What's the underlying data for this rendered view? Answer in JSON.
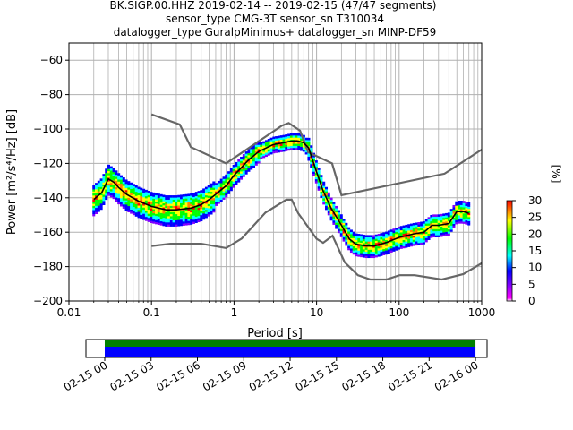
{
  "title": {
    "line1": "BK.SIGP.00.HHZ   2019-02-14 -- 2019-02-15  (47/47 segments)",
    "line2": "sensor_type CMG-3T sensor_sn T310034",
    "line3": "datalogger_type GuralpMinimus+ datalogger_sn MINP-DF59"
  },
  "colors": {
    "mean_curve": "#000000",
    "noise_models": "#666666",
    "grid": "#b0b0b0",
    "coverage_green": "#008000",
    "coverage_blue": "#0000ff"
  },
  "colorbar": {
    "label": "[%]",
    "ticks": [
      "0",
      "5",
      "10",
      "15",
      "20",
      "25",
      "30"
    ],
    "min": 0,
    "max": 30,
    "colormap": "pqlx"
  },
  "coverage": {
    "tick_labels": [
      "02-15 00",
      "02-15 03",
      "02-15 06",
      "02-15 09",
      "02-15 12",
      "02-15 15",
      "02-15 18",
      "02-15 21",
      "02-16 00"
    ],
    "range_start": "2019-02-14 22:47",
    "range_end": "2019-02-16 00:45",
    "data_start": "2019-02-15 00:00",
    "data_end": "2019-02-16 00:00",
    "bars": [
      "green",
      "blue"
    ]
  },
  "chart_data": {
    "type": "line",
    "xlabel": "Period [s]",
    "ylabel": "Power [m²/s⁴/Hz] [dB]",
    "xscale": "log",
    "xlim": [
      0.01,
      1000
    ],
    "ylim": [
      -200,
      -50
    ],
    "x_tick_labels": [
      "0.01",
      "0.1",
      "1",
      "10",
      "100",
      "1000"
    ],
    "y_tick_labels": [
      "−60",
      "−80",
      "−100",
      "−120",
      "−140",
      "−160",
      "−180",
      "−200"
    ],
    "grid": true,
    "series": [
      {
        "type": "mean",
        "x": [
          0.02,
          0.025,
          0.03,
          0.035,
          0.04,
          0.05,
          0.07,
          0.1,
          0.15,
          0.2,
          0.3,
          0.4,
          0.5,
          0.6,
          0.8,
          1,
          1.5,
          2,
          3,
          4,
          5,
          6,
          7,
          8,
          10,
          12,
          15,
          20,
          25,
          30,
          40,
          50,
          70,
          100,
          150,
          200,
          250,
          300,
          400,
          500,
          600,
          700
        ],
        "y": [
          -141,
          -137,
          -129,
          -131,
          -134,
          -138,
          -142,
          -145,
          -147,
          -147,
          -146,
          -144,
          -141,
          -138,
          -133,
          -127,
          -118,
          -113,
          -109,
          -108,
          -107,
          -107,
          -108,
          -111,
          -125,
          -136,
          -146,
          -156,
          -164,
          -167,
          -168,
          -168,
          -166,
          -163,
          -161,
          -160,
          -156,
          -156,
          -155,
          -148,
          -148,
          -149
        ]
      },
      {
        "type": "noise_model_high",
        "x": [
          0.1,
          0.22,
          0.3,
          0.8,
          3.8,
          4.6,
          6.3,
          7.9,
          15.4,
          20,
          354.8,
          1000
        ],
        "y": [
          -91.5,
          -97.4,
          -110.5,
          -120,
          -98,
          -96.5,
          -101,
          -113.5,
          -120,
          -138.5,
          -126,
          -112
        ]
      },
      {
        "type": "noise_model_low",
        "x": [
          0.1,
          0.17,
          0.4,
          0.8,
          1.24,
          2.4,
          4.3,
          5,
          6,
          10,
          12,
          15.6,
          21.9,
          31.6,
          45,
          70,
          101,
          154,
          328,
          600,
          1000
        ],
        "y": [
          -168,
          -166.7,
          -166.7,
          -169.2,
          -163.7,
          -148.6,
          -141.1,
          -141.1,
          -149,
          -163.8,
          -166.2,
          -162.1,
          -177.5,
          -185,
          -187.5,
          -187.5,
          -185,
          -185,
          -187.5,
          -184.4,
          -178
        ]
      }
    ]
  }
}
